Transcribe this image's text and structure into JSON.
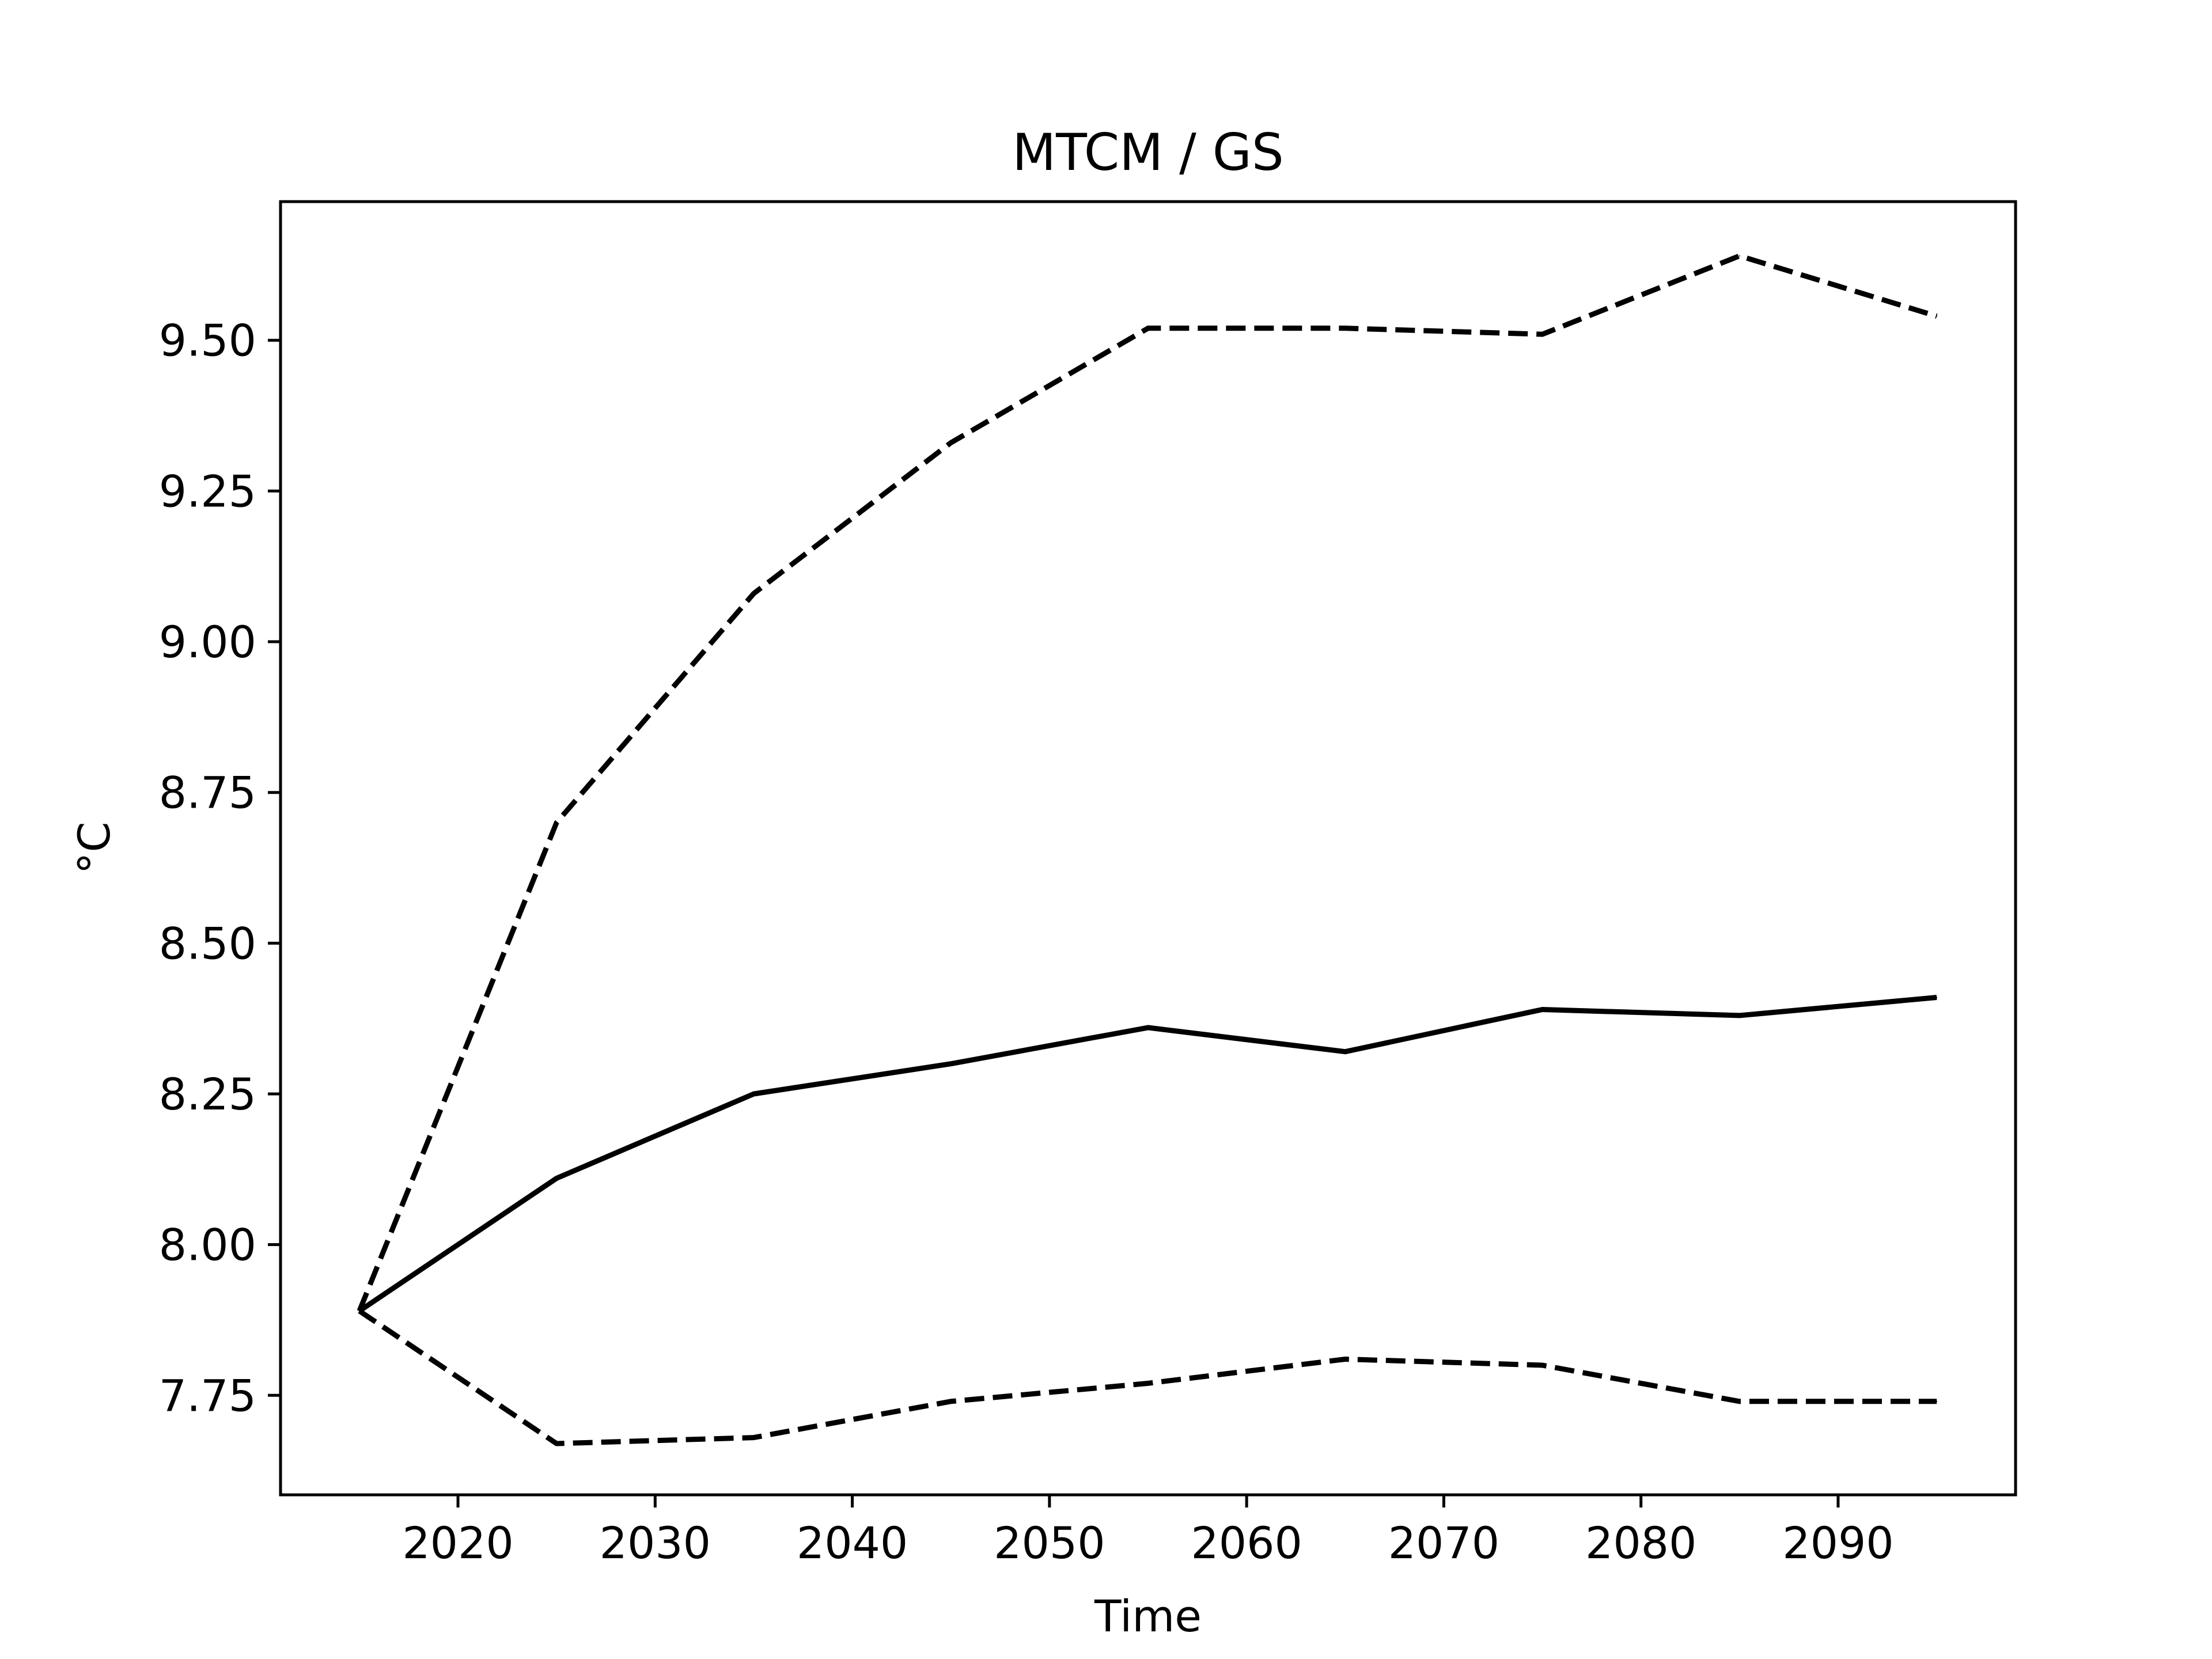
{
  "chart_data": {
    "type": "line",
    "title": "MTCM / GS",
    "xlabel": "Time",
    "ylabel": "°C",
    "xlim": [
      2011,
      2099
    ],
    "ylim": [
      7.585,
      9.73
    ],
    "x_ticks": [
      2020,
      2030,
      2040,
      2050,
      2060,
      2070,
      2080,
      2090
    ],
    "y_ticks": [
      7.75,
      8.0,
      8.25,
      8.5,
      8.75,
      9.0,
      9.25,
      9.5
    ],
    "y_tick_labels": [
      "7.75",
      "8.00",
      "8.25",
      "8.50",
      "8.75",
      "9.00",
      "9.25",
      "9.50"
    ],
    "grid": false,
    "line_color": "#000000",
    "series": [
      {
        "style": "dashed",
        "x": [
          2015,
          2025,
          2035,
          2045,
          2055,
          2065,
          2075,
          2085,
          2095
        ],
        "values": [
          7.89,
          8.7,
          9.08,
          9.33,
          9.52,
          9.52,
          9.51,
          9.64,
          9.54
        ]
      },
      {
        "style": "solid",
        "x": [
          2015,
          2025,
          2035,
          2045,
          2055,
          2065,
          2075,
          2085,
          2095
        ],
        "values": [
          7.89,
          8.11,
          8.25,
          8.3,
          8.36,
          8.32,
          8.39,
          8.38,
          8.41
        ]
      },
      {
        "style": "dashed",
        "x": [
          2015,
          2025,
          2035,
          2045,
          2055,
          2065,
          2075,
          2085,
          2095
        ],
        "values": [
          7.89,
          7.67,
          7.68,
          7.74,
          7.77,
          7.81,
          7.8,
          7.74,
          7.74
        ]
      }
    ]
  }
}
